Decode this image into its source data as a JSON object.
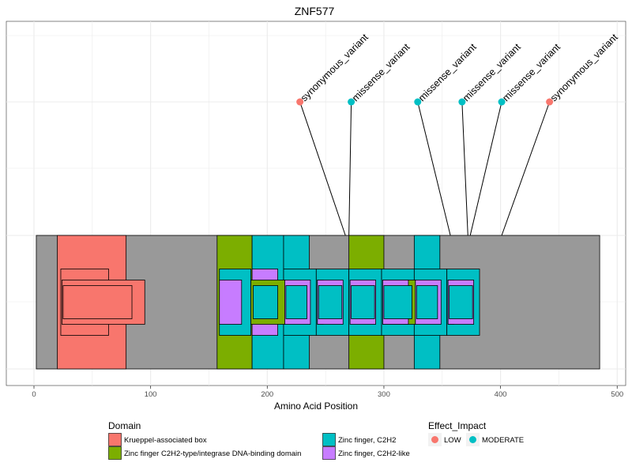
{
  "chart_data": {
    "type": "lollipop-domain",
    "title": "ZNF577",
    "xlabel": "Amino Acid Position",
    "ylabel": "",
    "xlim": [
      0,
      500
    ],
    "x_ticks": [
      0,
      100,
      200,
      300,
      400,
      500
    ],
    "grid": true,
    "protein_length": 485,
    "domains": [
      {
        "name": "Krueppel-associated box",
        "start": 20,
        "end": 79,
        "level": "full"
      },
      {
        "name": "Krueppel-associated box",
        "start": 23,
        "end": 64,
        "level": "mid"
      },
      {
        "name": "Krueppel-associated box",
        "start": 24,
        "end": 95,
        "level": "inner"
      },
      {
        "name": "Krueppel-associated box",
        "start": 25,
        "end": 84,
        "level": "core"
      },
      {
        "name": "Zinc finger C2H2-type/integrase DNA-binding domain",
        "start": 157,
        "end": 187,
        "level": "full"
      },
      {
        "name": "Zinc finger C2H2-type/integrase DNA-binding domain",
        "start": 186,
        "end": 215,
        "level": "inner"
      },
      {
        "name": "Zinc finger C2H2-type/integrase DNA-binding domain",
        "start": 243,
        "end": 248,
        "level": "inner"
      },
      {
        "name": "Zinc finger C2H2-type/integrase DNA-binding domain",
        "start": 270,
        "end": 300,
        "level": "full"
      },
      {
        "name": "Zinc finger C2H2-type/integrase DNA-binding domain",
        "start": 299,
        "end": 327,
        "level": "inner"
      },
      {
        "name": "Zinc finger C2H2-type/integrase DNA-binding domain",
        "start": 355,
        "end": 360,
        "level": "inner"
      },
      {
        "name": "Zinc finger, C2H2",
        "start": 187,
        "end": 214,
        "level": "full"
      },
      {
        "name": "Zinc finger, C2H2",
        "start": 214,
        "end": 236,
        "level": "full"
      },
      {
        "name": "Zinc finger, C2H2",
        "start": 326,
        "end": 348,
        "level": "full"
      },
      {
        "name": "Zinc finger, C2H2",
        "start": 159,
        "end": 186,
        "level": "mid"
      },
      {
        "name": "Zinc finger, C2H2",
        "start": 214,
        "end": 242,
        "level": "mid"
      },
      {
        "name": "Zinc finger, C2H2",
        "start": 242,
        "end": 270,
        "level": "mid"
      },
      {
        "name": "Zinc finger, C2H2",
        "start": 270,
        "end": 298,
        "level": "mid"
      },
      {
        "name": "Zinc finger, C2H2",
        "start": 298,
        "end": 326,
        "level": "mid"
      },
      {
        "name": "Zinc finger, C2H2",
        "start": 326,
        "end": 354,
        "level": "mid"
      },
      {
        "name": "Zinc finger, C2H2",
        "start": 354,
        "end": 382,
        "level": "mid"
      },
      {
        "name": "Zinc finger, C2H2",
        "start": 188,
        "end": 209,
        "level": "core"
      },
      {
        "name": "Zinc finger, C2H2",
        "start": 216,
        "end": 234,
        "level": "core"
      },
      {
        "name": "Zinc finger, C2H2",
        "start": 244,
        "end": 264,
        "level": "core"
      },
      {
        "name": "Zinc finger, C2H2",
        "start": 272,
        "end": 292,
        "level": "core"
      },
      {
        "name": "Zinc finger, C2H2",
        "start": 300,
        "end": 324,
        "level": "core"
      },
      {
        "name": "Zinc finger, C2H2",
        "start": 328,
        "end": 346,
        "level": "core"
      },
      {
        "name": "Zinc finger, C2H2",
        "start": 356,
        "end": 376,
        "level": "core"
      },
      {
        "name": "Zinc finger, C2H2-like",
        "start": 159,
        "end": 178,
        "level": "inner"
      },
      {
        "name": "Zinc finger, C2H2-like",
        "start": 187,
        "end": 209,
        "level": "mid"
      },
      {
        "name": "Zinc finger, C2H2-like",
        "start": 215,
        "end": 237,
        "level": "inner"
      },
      {
        "name": "Zinc finger, C2H2-like",
        "start": 243,
        "end": 265,
        "level": "inner"
      },
      {
        "name": "Zinc finger, C2H2-like",
        "start": 271,
        "end": 293,
        "level": "inner"
      },
      {
        "name": "Zinc finger, C2H2-like",
        "start": 299,
        "end": 321,
        "level": "inner"
      },
      {
        "name": "Zinc finger, C2H2-like",
        "start": 327,
        "end": 349,
        "level": "inner"
      },
      {
        "name": "Zinc finger, C2H2-like",
        "start": 355,
        "end": 377,
        "level": "inner"
      }
    ],
    "variants": [
      {
        "position": 267,
        "label_position": 228,
        "effect": "synonymous_variant",
        "impact": "LOW"
      },
      {
        "position": 270,
        "label_position": 272,
        "effect": "missense_variant",
        "impact": "MODERATE"
      },
      {
        "position": 357,
        "label_position": 329,
        "effect": "missense_variant",
        "impact": "MODERATE"
      },
      {
        "position": 372,
        "label_position": 367,
        "effect": "missense_variant",
        "impact": "MODERATE"
      },
      {
        "position": 374,
        "label_position": 401,
        "effect": "missense_variant",
        "impact": "MODERATE"
      },
      {
        "position": 401,
        "label_position": 442,
        "effect": "synonymous_variant",
        "impact": "LOW"
      }
    ],
    "legend": {
      "domain_title": "Domain",
      "domain_items": [
        {
          "label": "Krueppel-associated box",
          "color": "#F8766D"
        },
        {
          "label": "Zinc finger C2H2-type/integrase DNA-binding domain",
          "color": "#7CAE00"
        },
        {
          "label": "Zinc finger, C2H2",
          "color": "#00BFC4"
        },
        {
          "label": "Zinc finger, C2H2-like",
          "color": "#C77CFF"
        }
      ],
      "impact_title": "Effect_Impact",
      "impact_items": [
        {
          "label": "LOW",
          "color": "#F8766D"
        },
        {
          "label": "MODERATE",
          "color": "#00BFC4"
        }
      ],
      "placement": "bottom"
    },
    "colors": {
      "protein": "#999999",
      "panel_background": "#ffffff",
      "grid": "#ebebeb"
    }
  }
}
